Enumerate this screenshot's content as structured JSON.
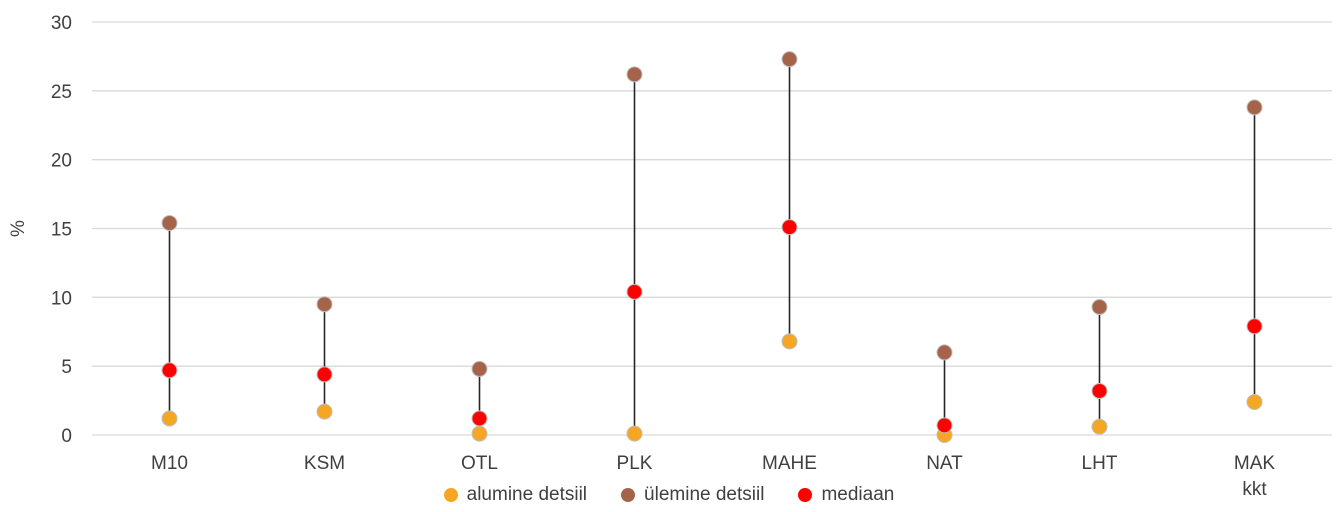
{
  "chart_data": {
    "type": "scatter",
    "ylabel": "%",
    "ylim": [
      0,
      30
    ],
    "yticks": [
      0,
      5,
      10,
      15,
      20,
      25,
      30
    ],
    "grid": true,
    "legend_position": "bottom",
    "categories": [
      "M10",
      "KSM",
      "OTL",
      "PLK",
      "MAHE",
      "NAT",
      "LHT",
      "MAK kkt"
    ],
    "category_lines": [
      [
        "M10"
      ],
      [
        "KSM"
      ],
      [
        "OTL"
      ],
      [
        "PLK"
      ],
      [
        "MAHE"
      ],
      [
        "NAT"
      ],
      [
        "LHT"
      ],
      [
        "MAK",
        "kkt"
      ]
    ],
    "series": [
      {
        "name": "alumine detsiil",
        "color": "#f5a623",
        "values": [
          1.2,
          1.7,
          0.1,
          0.1,
          6.8,
          0.0,
          0.6,
          2.4
        ]
      },
      {
        "name": "ülemine detsiil",
        "color": "#a5634a",
        "values": [
          15.4,
          9.5,
          4.8,
          26.2,
          27.3,
          6.0,
          9.3,
          23.8
        ]
      },
      {
        "name": "mediaan",
        "color": "#ff0000",
        "values": [
          4.7,
          4.4,
          1.2,
          10.4,
          15.1,
          0.7,
          3.2,
          7.9
        ]
      }
    ]
  }
}
